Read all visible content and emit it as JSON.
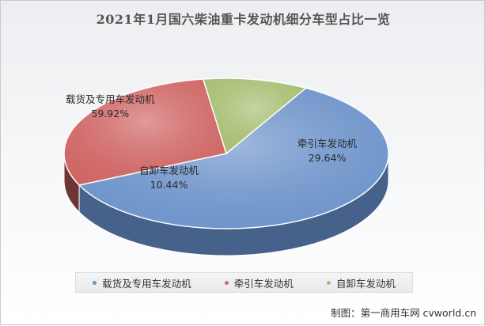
{
  "chart_data": {
    "type": "pie",
    "title": "2021年1月国六柴油重卡发动机细分车型占比一览",
    "categories": [
      "载货及专用车发动机",
      "牵引车发动机",
      "自卸车发动机"
    ],
    "values": [
      59.92,
      29.64,
      10.44
    ],
    "value_labels": [
      "59.92%",
      "29.64%",
      "10.44%"
    ],
    "colors": [
      "#6e94ca",
      "#cf6665",
      "#a7be72"
    ],
    "side_colors": [
      "#46628a",
      "#6c3434",
      "#687a47"
    ],
    "legend_position": "bottom",
    "style": "3d"
  },
  "footer": {
    "source": "制图：第一商用车网 cvworld.cn"
  }
}
